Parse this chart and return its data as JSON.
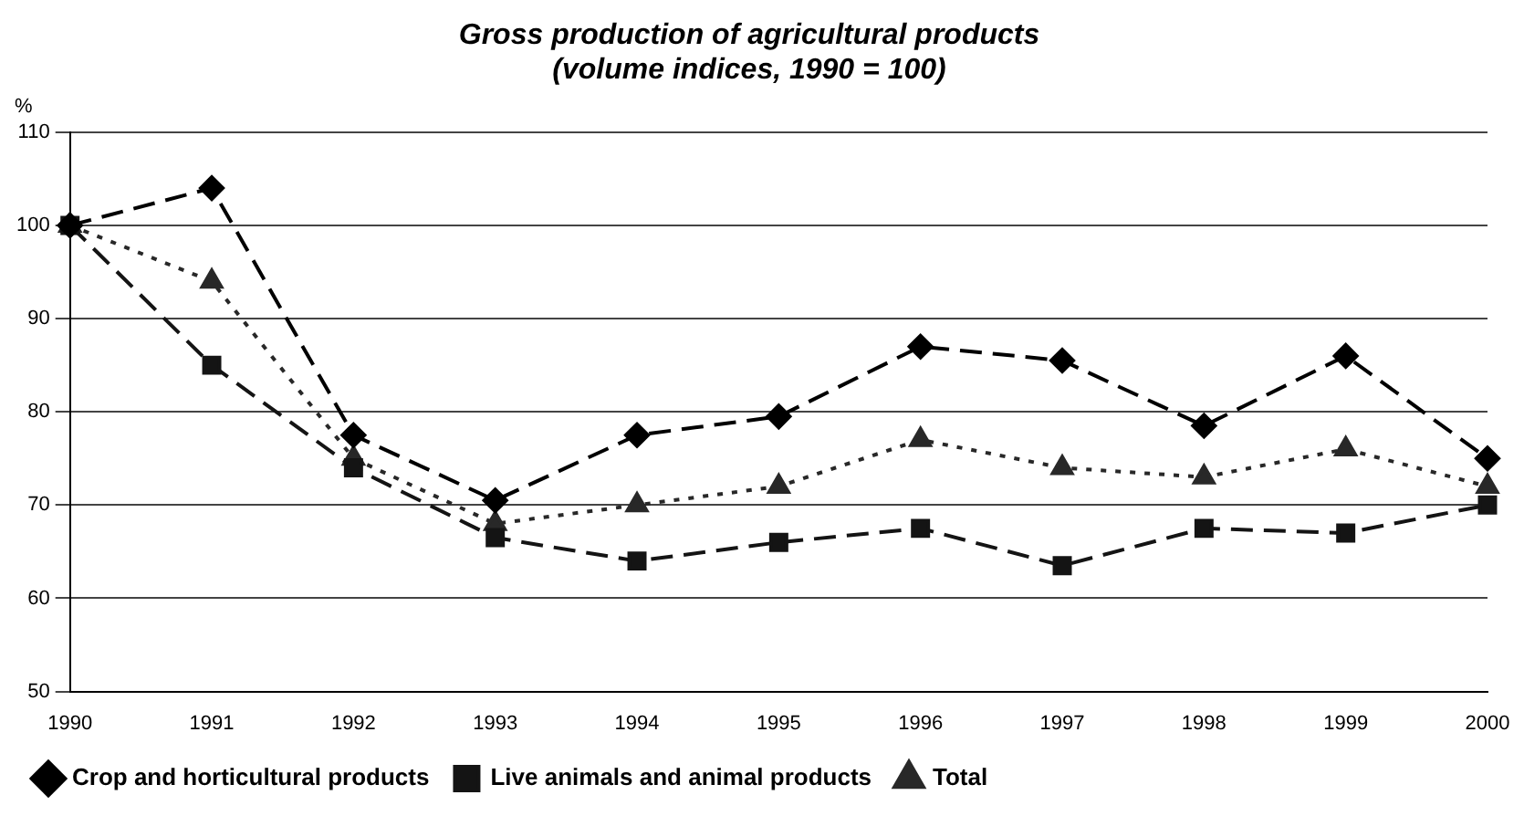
{
  "chart_data": {
    "type": "line",
    "title": "Gross production of agricultural products",
    "subtitle": "(volume indices, 1990 = 100)",
    "ylabel": "%",
    "categories": [
      "1990",
      "1991",
      "1992",
      "1993",
      "1994",
      "1995",
      "1996",
      "1997",
      "1998",
      "1999",
      "2000"
    ],
    "series": [
      {
        "name": "Crop and horticultural products",
        "color": "#000000",
        "marker": "diamond",
        "line_style": "dashed",
        "values": [
          100,
          104,
          77.5,
          70.5,
          77.5,
          79.5,
          87,
          85.5,
          78.5,
          86,
          75
        ]
      },
      {
        "name": "Live animals and animal products",
        "color": "#141414",
        "marker": "square",
        "line_style": "dashed",
        "values": [
          100,
          85,
          74,
          66.5,
          64,
          66,
          67.5,
          63.5,
          67.5,
          67,
          70
        ]
      },
      {
        "name": "Total",
        "color": "#282828",
        "marker": "triangle",
        "line_style": "dotted",
        "values": [
          100,
          94,
          75,
          68,
          70,
          72,
          77,
          74,
          73,
          76,
          72
        ]
      }
    ],
    "ylim": [
      50,
      110
    ],
    "yticks": [
      50,
      60,
      70,
      80,
      90,
      100,
      110
    ],
    "grid": "y",
    "legend": "bottom"
  }
}
